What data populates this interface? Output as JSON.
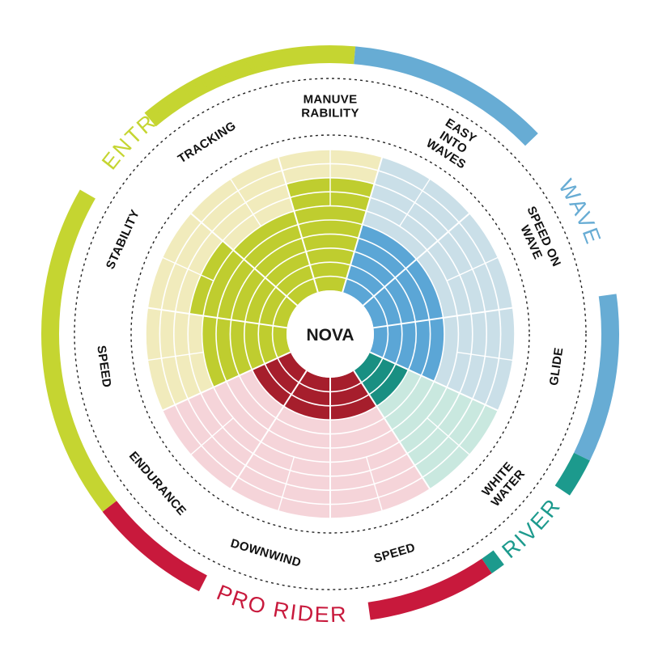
{
  "chart_data": {
    "type": "radial-bar",
    "title": "NOVA",
    "scale_max": 10,
    "colors": {
      "entry_touring": "#c5d531",
      "wave": "#67acd4",
      "river": "#1c9a8d",
      "pro_rider": "#c8193c",
      "entry_bg": "#f1ebbc",
      "wave_bg": "#cadfe8",
      "river_bg": "#c9e8df",
      "pro_bg": "#f5d4d9",
      "entry_fill": "#bfcd2f",
      "wave_fill": "#5ba6d6",
      "river_fill": "#198f82",
      "pro_fill": "#a61e2c"
    },
    "groups": [
      {
        "name": "ENTRY/TOURING",
        "color_key": "entry_touring"
      },
      {
        "name": "WAVE",
        "color_key": "wave"
      },
      {
        "name": "RIVER",
        "color_key": "river"
      },
      {
        "name": "PRO RIDER",
        "color_key": "pro_rider"
      }
    ],
    "categories": [
      {
        "label": [
          "MANUVE",
          "RABILITY"
        ],
        "group": "ENTRY/TOURING",
        "value": 8
      },
      {
        "label": [
          "EASY",
          "INTO",
          "WAVES"
        ],
        "group": "WAVE",
        "value": 5
      },
      {
        "label": [
          "SPEED ON",
          "WAVE"
        ],
        "group": "WAVE",
        "value": 5
      },
      {
        "label": [
          "GLIDE"
        ],
        "group": "WAVE",
        "value": 5
      },
      {
        "label": [
          "WHITE",
          "WATER"
        ],
        "group": "RIVER",
        "value": 3
      },
      {
        "label": [
          "SPEED"
        ],
        "group": "PRO RIDER",
        "value": 3
      },
      {
        "label": [
          "DOWNWIND"
        ],
        "group": "PRO RIDER",
        "value": 3
      },
      {
        "label": [
          "ENDURANCE"
        ],
        "group": "PRO RIDER",
        "value": 3
      },
      {
        "label": [
          "SPEED"
        ],
        "group": "ENTRY/TOURING",
        "value": 6
      },
      {
        "label": [
          "STABILITY"
        ],
        "group": "ENTRY/TOURING",
        "value": 7
      },
      {
        "label": [
          "TRACKING"
        ],
        "group": "ENTRY/TOURING",
        "value": 6
      }
    ]
  }
}
